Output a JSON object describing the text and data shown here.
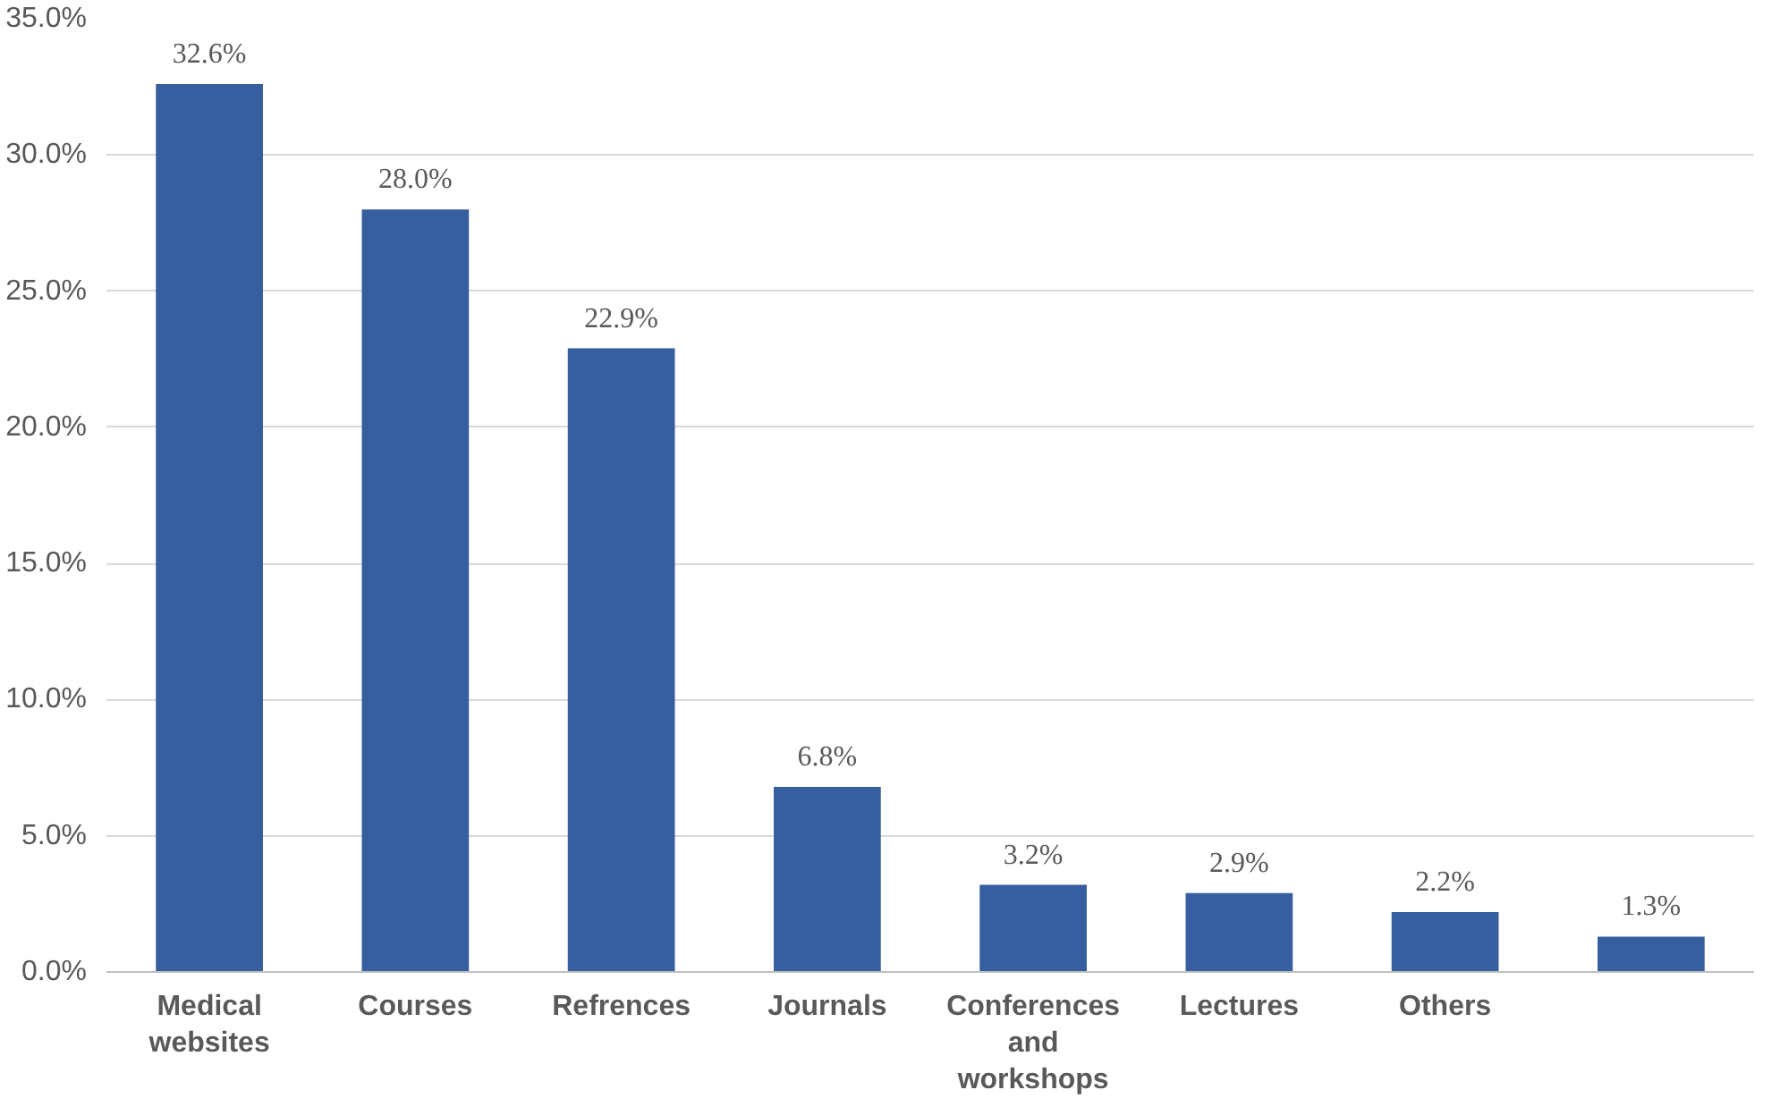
{
  "chart_data": {
    "type": "bar",
    "categories": [
      "Medical websites",
      "Courses",
      "Refrences",
      "Journals",
      "Conferences and workshops",
      "Lectures",
      "Others",
      null
    ],
    "values": [
      32.6,
      28.0,
      22.9,
      6.8,
      3.2,
      2.9,
      2.2,
      1.3
    ],
    "value_labels": [
      "32.6%",
      "28.0%",
      "22.9%",
      "6.8%",
      "3.2%",
      "2.9%",
      "2.2%",
      "1.3%"
    ],
    "color": "#375e9f",
    "ylim": [
      0,
      35
    ],
    "yticks": [
      {
        "value": 0,
        "label": "0.0%"
      },
      {
        "value": 5,
        "label": "5.0%"
      },
      {
        "value": 10,
        "label": "10.0%"
      },
      {
        "value": 15,
        "label": "15.0%"
      },
      {
        "value": 20,
        "label": "20.0%"
      },
      {
        "value": 25,
        "label": "25.0%"
      },
      {
        "value": 30,
        "label": "30.0%"
      },
      {
        "value": 35,
        "label": "35.0%"
      }
    ],
    "grid": "y"
  }
}
